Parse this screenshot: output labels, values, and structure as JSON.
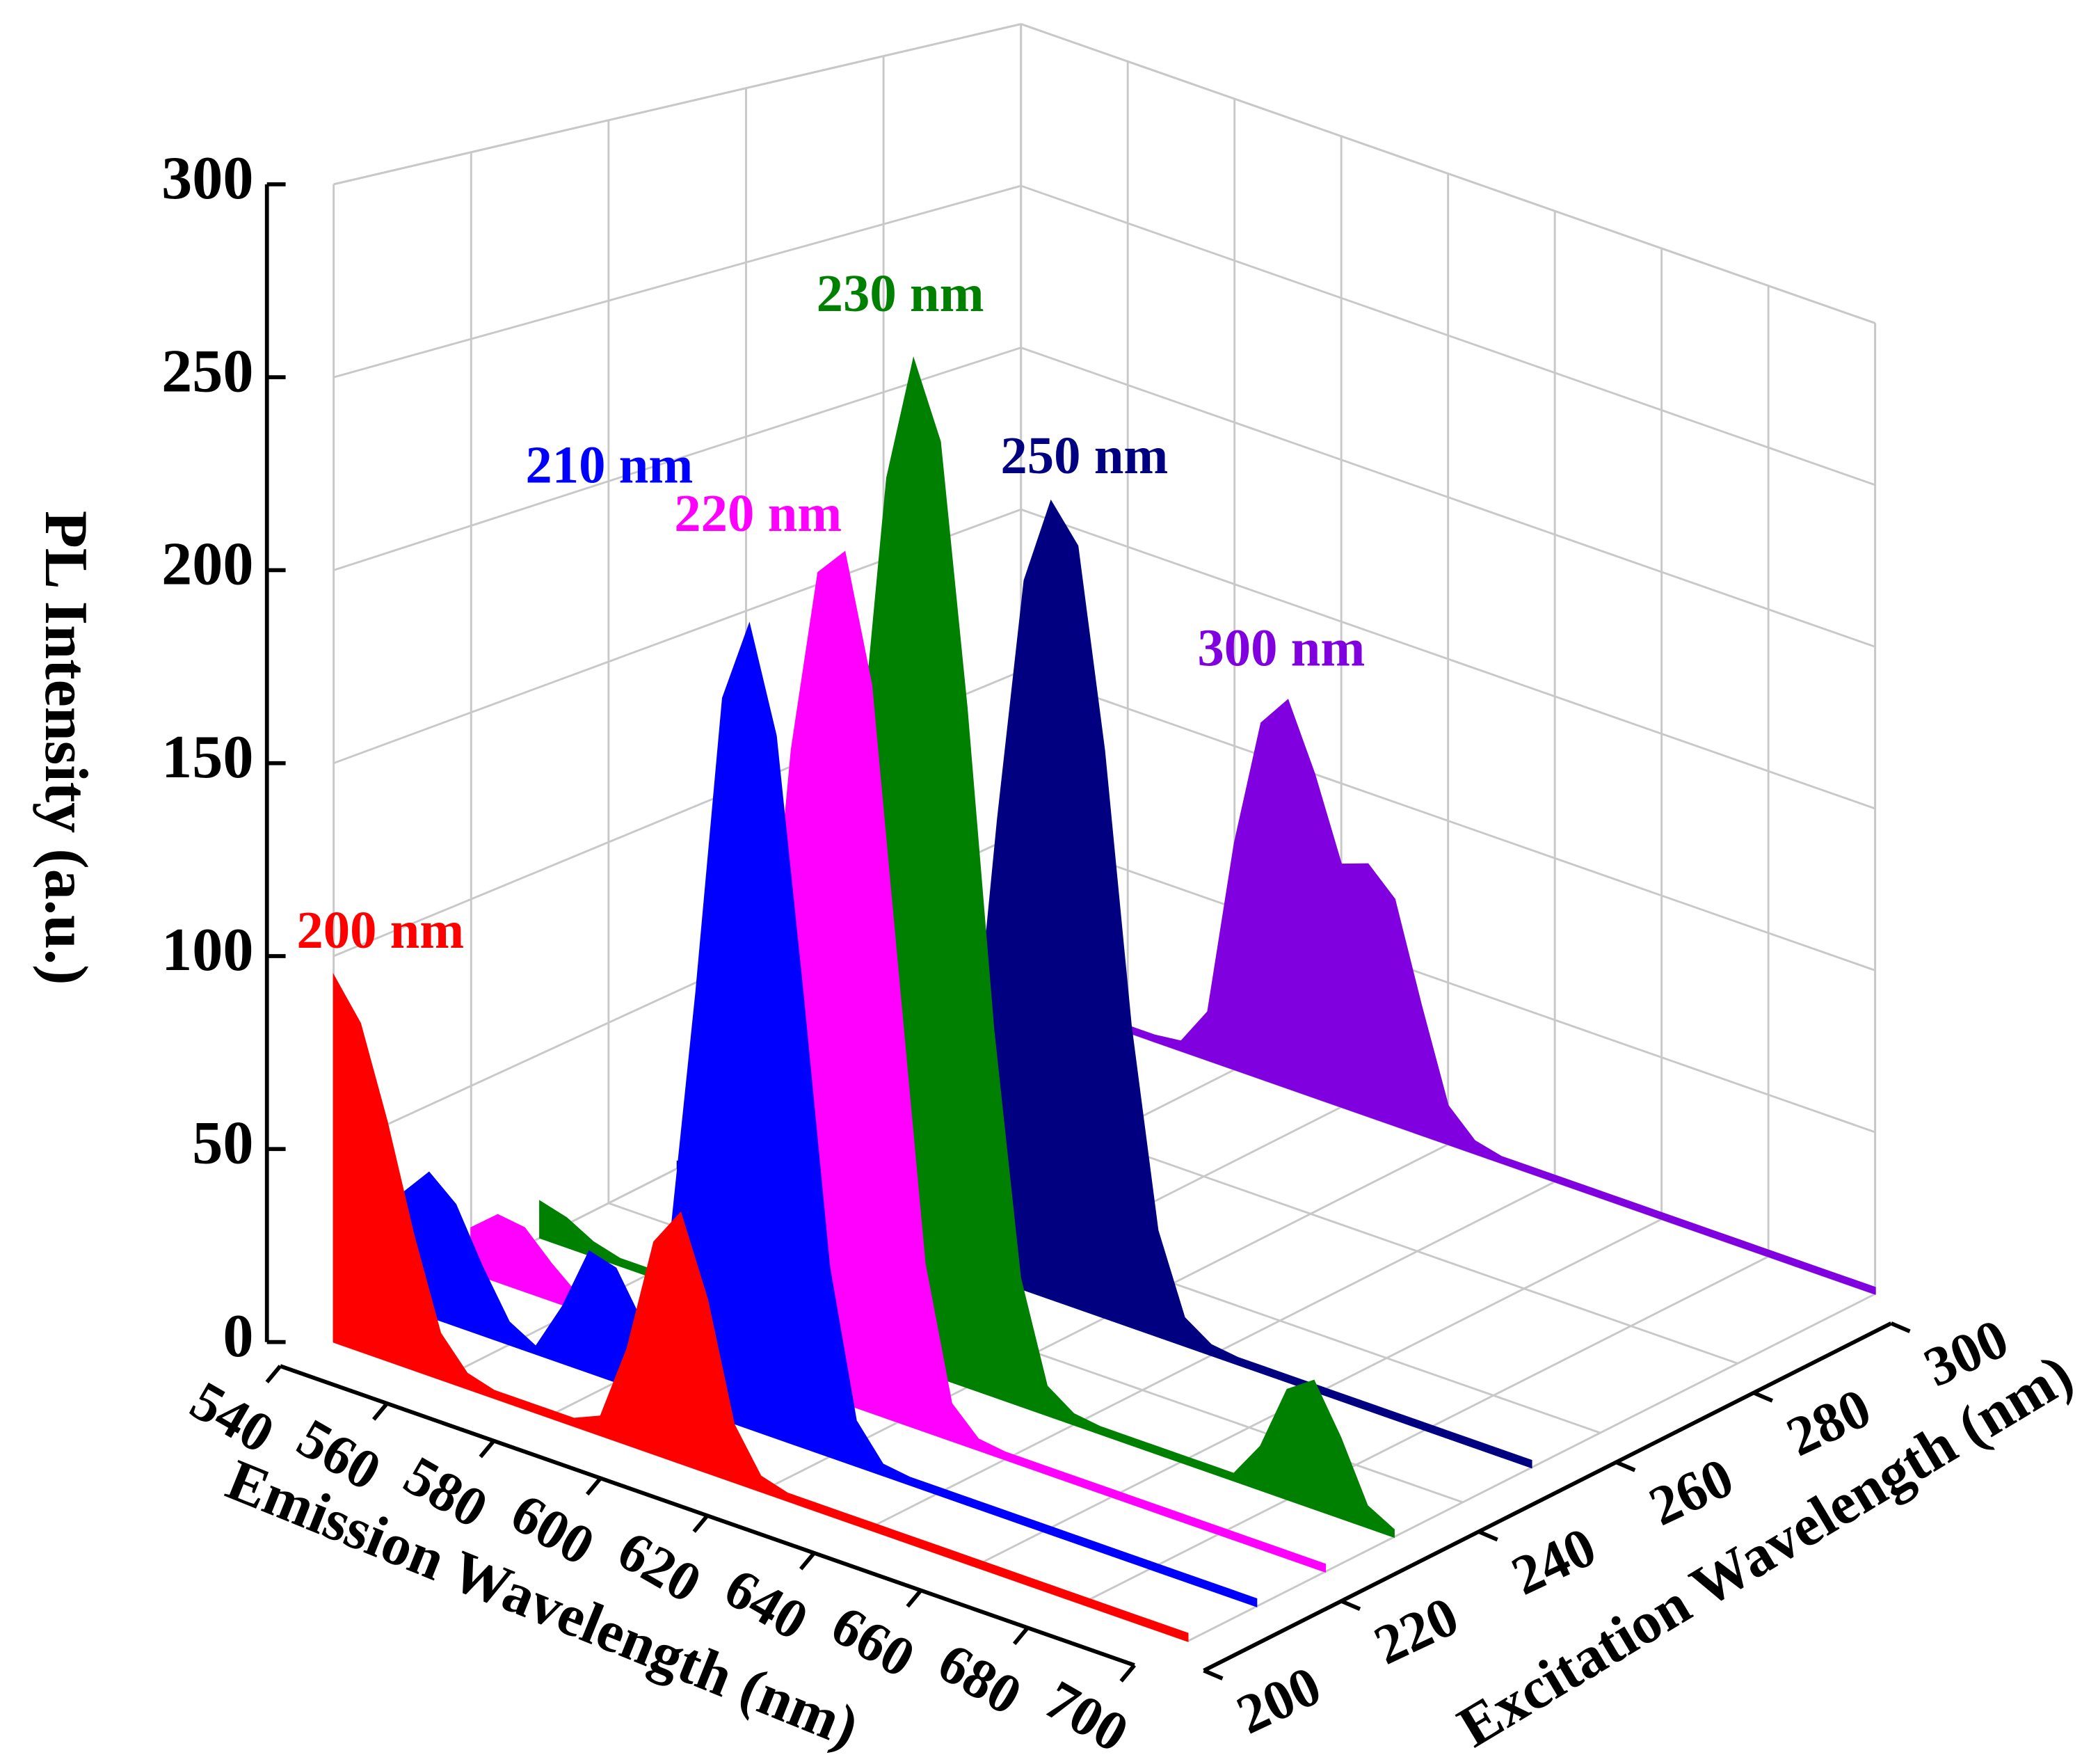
{
  "chart_data": {
    "type": "waterfall3d",
    "zlabel": "PL Intensity (a.u.)",
    "xlabel": "Emission Wavelength (nm)",
    "ylabel": "Excitation Wavelength (nm)",
    "xlim": [
      540,
      700
    ],
    "xticks": [
      540,
      560,
      580,
      600,
      620,
      640,
      660,
      680,
      700
    ],
    "ylim": [
      200,
      300
    ],
    "yticks": [
      200,
      220,
      240,
      260,
      280,
      300
    ],
    "zlim": [
      0,
      300
    ],
    "zticks": [
      0,
      50,
      100,
      150,
      200,
      250,
      300
    ],
    "grid": true,
    "x": [
      540,
      545,
      550,
      555,
      560,
      565,
      570,
      575,
      580,
      585,
      590,
      595,
      600,
      605,
      610,
      615,
      620,
      625,
      630,
      635,
      640,
      645,
      650,
      655,
      660,
      665,
      670,
      675,
      680,
      685,
      690,
      695,
      700
    ],
    "series": [
      {
        "name": "200 nm",
        "excitation": 200,
        "color": "#ff0000",
        "values": [
          95,
          85,
          62,
          35,
          12,
          4,
          2,
          2,
          2,
          2,
          5,
          25,
          55,
          65,
          45,
          15,
          4,
          2,
          2,
          2,
          2,
          2,
          2,
          2,
          2,
          2,
          2,
          2,
          2,
          2,
          2,
          2,
          2
        ]
      },
      {
        "name": "210 nm",
        "excitation": 210,
        "color": "#0000ff",
        "values": [
          30,
          38,
          32,
          18,
          6,
          2,
          15,
          32,
          30,
          18,
          40,
          110,
          190,
          212,
          185,
          120,
          50,
          12,
          3,
          2,
          2,
          2,
          2,
          2,
          2,
          2,
          2,
          2,
          2,
          2,
          2,
          2,
          2
        ]
      },
      {
        "name": "220 nm",
        "excitation": 220,
        "color": "#ff00ff",
        "values": [
          12,
          18,
          17,
          10,
          4,
          2,
          2,
          2,
          2,
          5,
          25,
          90,
          170,
          220,
          228,
          195,
          120,
          45,
          10,
          3,
          2,
          2,
          2,
          2,
          2,
          2,
          2,
          2,
          2,
          2,
          2,
          2,
          2
        ]
      },
      {
        "name": "230 nm",
        "excitation": 230,
        "color": "#008000",
        "values": [
          10,
          8,
          4,
          2,
          2,
          2,
          2,
          2,
          2,
          3,
          15,
          70,
          160,
          240,
          275,
          255,
          185,
          100,
          35,
          8,
          3,
          2,
          2,
          2,
          2,
          2,
          2,
          12,
          30,
          35,
          22,
          6,
          2
        ]
      },
      {
        "name": "250 nm",
        "excitation": 250,
        "color": "#000080",
        "values": [
          2,
          2,
          2,
          2,
          2,
          2,
          2,
          2,
          2,
          3,
          12,
          50,
          130,
          200,
          225,
          215,
          160,
          85,
          30,
          8,
          3,
          2,
          2,
          2,
          2,
          2,
          2,
          2,
          2,
          2,
          2,
          2,
          2
        ]
      },
      {
        "name": "300 nm",
        "excitation": 300,
        "color": "#8000e0",
        "values": [
          2,
          2,
          2,
          2,
          2,
          2,
          3,
          15,
          70,
          110,
          120,
          100,
          75,
          78,
          70,
          40,
          12,
          4,
          2,
          2,
          2,
          2,
          2,
          2,
          2,
          2,
          2,
          2,
          2,
          2,
          2,
          2,
          2
        ]
      }
    ]
  }
}
